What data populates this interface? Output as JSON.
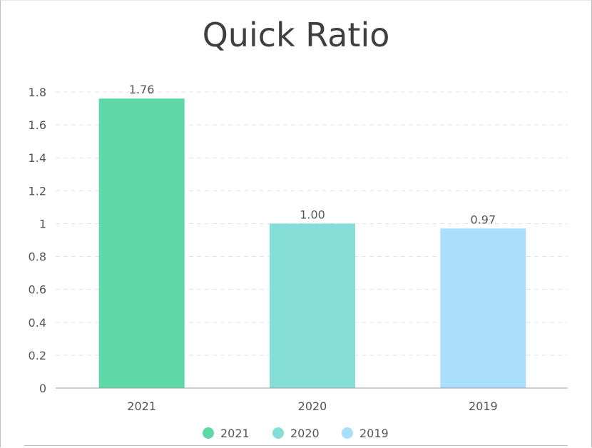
{
  "chart_data": {
    "type": "bar",
    "title": "Quick Ratio",
    "categories": [
      "2021",
      "2020",
      "2019"
    ],
    "values": [
      1.76,
      1.0,
      0.97
    ],
    "value_labels": [
      "1.76",
      "1.00",
      "0.97"
    ],
    "colors": [
      "#5fd8a8",
      "#84ddd6",
      "#a9dffa"
    ],
    "yticks": [
      "0",
      "0.2",
      "0.4",
      "0.6",
      "0.8",
      "1",
      "1.2",
      "1.4",
      "1.6",
      "1.8"
    ],
    "ylim": [
      0,
      1.8
    ],
    "grid": true,
    "legend": {
      "placement": "bottom-center",
      "entries": [
        "2021",
        "2020",
        "2019"
      ]
    }
  }
}
